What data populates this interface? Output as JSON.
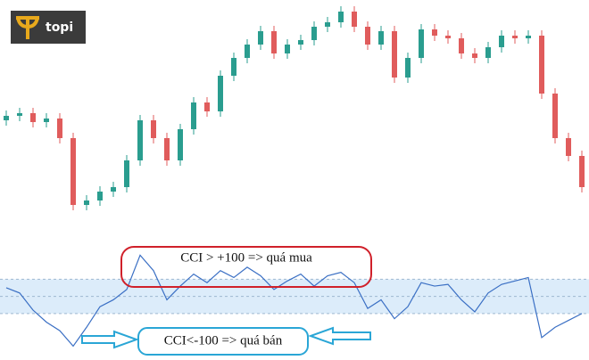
{
  "logo": {
    "text": "topi"
  },
  "chart_data": [
    {
      "type": "candlestick",
      "up_color": "#2a9d8f",
      "down_color": "#e05c5c",
      "ylim": [
        0,
        265
      ],
      "open": [
        130,
        135,
        138,
        128,
        132,
        110,
        35,
        40,
        50,
        55,
        85,
        130,
        110,
        85,
        120,
        150,
        140,
        180,
        200,
        215,
        230,
        205,
        215,
        220,
        235,
        240,
        252,
        235,
        215,
        230,
        178,
        200,
        232,
        225,
        222,
        205,
        200,
        212,
        225,
        222,
        225,
        160,
        110,
        90
      ],
      "high": [
        141,
        144,
        144,
        138,
        138,
        116,
        46,
        56,
        61,
        91,
        136,
        136,
        116,
        126,
        156,
        156,
        186,
        206,
        221,
        236,
        236,
        221,
        226,
        241,
        246,
        258,
        258,
        241,
        236,
        236,
        206,
        238,
        238,
        231,
        228,
        211,
        218,
        231,
        231,
        231,
        231,
        166,
        116,
        96
      ],
      "low": [
        124,
        129,
        122,
        122,
        104,
        29,
        29,
        34,
        44,
        49,
        79,
        104,
        79,
        79,
        114,
        134,
        134,
        174,
        194,
        209,
        199,
        199,
        209,
        214,
        229,
        234,
        229,
        209,
        209,
        172,
        172,
        194,
        219,
        216,
        199,
        194,
        194,
        206,
        216,
        216,
        154,
        104,
        84,
        49
      ],
      "close": [
        135,
        138,
        128,
        132,
        110,
        35,
        40,
        50,
        55,
        85,
        130,
        110,
        85,
        120,
        150,
        140,
        180,
        200,
        215,
        230,
        205,
        215,
        220,
        235,
        240,
        252,
        235,
        215,
        230,
        178,
        200,
        232,
        225,
        222,
        205,
        200,
        212,
        225,
        222,
        225,
        160,
        110,
        90,
        55
      ]
    },
    {
      "type": "line",
      "color": "#3a6fc4",
      "ylim": [
        -350,
        320
      ],
      "levels": [
        -100,
        0,
        100
      ],
      "band_color": "#dcecfa",
      "values": [
        50,
        20,
        -80,
        -150,
        -200,
        -290,
        -180,
        -60,
        -20,
        40,
        240,
        150,
        -20,
        60,
        130,
        80,
        150,
        110,
        170,
        120,
        40,
        90,
        130,
        60,
        120,
        140,
        80,
        -70,
        -20,
        -130,
        -60,
        80,
        60,
        70,
        -20,
        -90,
        20,
        70,
        90,
        110,
        -240,
        -180,
        -140,
        -100
      ],
      "annotations": [
        "CCI > +100 => quá mua",
        "CCI<-100 => quá bán"
      ]
    }
  ]
}
